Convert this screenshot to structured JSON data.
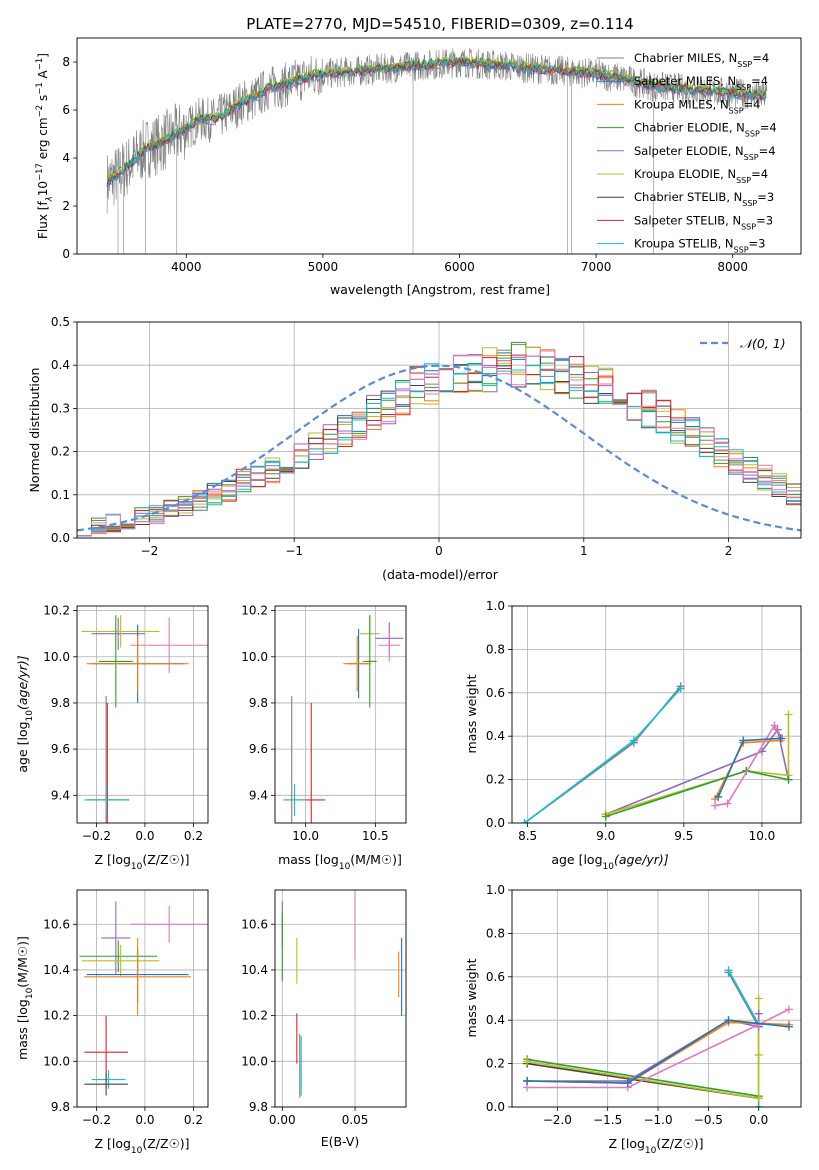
{
  "figure_title": "PLATE=2770, MJD=54510, FIBERID=0309, z=0.114",
  "colors": {
    "Chabrier MILES": "#7f7f7f",
    "Salpeter MILES": "#1f77b4",
    "Kroupa MILES": "#ff7f0e",
    "Chabrier ELODIE": "#2ca02c",
    "Salpeter ELODIE": "#9467bd",
    "Kroupa ELODIE": "#bcbd22",
    "Chabrier STELIB": "#444444",
    "Salpeter STELIB": "#d62728",
    "Kroupa STELIB": "#17becf",
    "Extra": "#e377c2",
    "normal": "#5b8bd8"
  },
  "chart_data": [
    {
      "id": "spectrum",
      "type": "line",
      "title": "PLATE=2770, MJD=54510, FIBERID=0309, z=0.114",
      "xlabel": "wavelength [Angstrom, rest frame]",
      "ylabel_parts": [
        "Flux [f",
        "λ",
        "10",
        "−17",
        " erg cm",
        "−2",
        " s",
        "−1",
        " A",
        "−1",
        "]"
      ],
      "xlim": [
        3200,
        8500
      ],
      "ylim": [
        0,
        9
      ],
      "xticks": [
        4000,
        5000,
        6000,
        7000,
        8000
      ],
      "yticks": [
        0,
        2,
        4,
        6,
        8
      ],
      "legend_position": "right",
      "legend": [
        {
          "name": "Chabrier MILES, N",
          "sub": "SSP",
          "suffix": "=4",
          "color": "#7f7f7f"
        },
        {
          "name": "Salpeter MILES, N",
          "sub": "SSP",
          "suffix": "=4",
          "color": "#1f77b4"
        },
        {
          "name": "Kroupa MILES, N",
          "sub": "SSP",
          "suffix": "=4",
          "color": "#ff7f0e"
        },
        {
          "name": "Chabrier ELODIE, N",
          "sub": "SSP",
          "suffix": "=4",
          "color": "#2ca02c"
        },
        {
          "name": "Salpeter ELODIE, N",
          "sub": "SSP",
          "suffix": "=4",
          "color": "#9467bd"
        },
        {
          "name": "Kroupa ELODIE, N",
          "sub": "SSP",
          "suffix": "=4",
          "color": "#bcbd22"
        },
        {
          "name": "Chabrier STELIB, N",
          "sub": "SSP",
          "suffix": "=3",
          "color": "#444444"
        },
        {
          "name": "Salpeter STELIB, N",
          "sub": "SSP",
          "suffix": "=3",
          "color": "#d62728"
        },
        {
          "name": "Kroupa STELIB, N",
          "sub": "SSP",
          "suffix": "=3",
          "color": "#17becf"
        }
      ],
      "model_curve": {
        "x": [
          3420,
          3500,
          3600,
          3700,
          3800,
          3900,
          4000,
          4100,
          4200,
          4300,
          4400,
          4500,
          4600,
          4700,
          4800,
          4900,
          5000,
          5200,
          5400,
          5600,
          5800,
          6000,
          6200,
          6400,
          6600,
          6800,
          7000,
          7200,
          7400,
          7600,
          7800,
          8000,
          8200,
          8250
        ],
        "y": [
          3.0,
          3.3,
          3.8,
          4.4,
          4.6,
          4.9,
          5.2,
          5.6,
          5.6,
          5.9,
          6.3,
          6.5,
          6.9,
          7.0,
          7.2,
          7.4,
          7.5,
          7.6,
          7.7,
          7.8,
          7.9,
          8.0,
          7.9,
          7.8,
          7.7,
          7.6,
          7.5,
          7.3,
          7.0,
          6.9,
          6.8,
          6.7,
          6.6,
          6.6
        ]
      },
      "data_range": [
        3420,
        8250
      ],
      "spikes": [
        {
          "x": 3500,
          "y0": 0,
          "y1": 3.2
        },
        {
          "x": 3540,
          "y0": 0,
          "y1": 3.3
        },
        {
          "x": 3700,
          "y0": 0,
          "y1": 4.4
        },
        {
          "x": 3930,
          "y0": 0,
          "y1": 4.8
        },
        {
          "x": 5660,
          "y0": 0,
          "y1": 7.7
        },
        {
          "x": 6790,
          "y0": 0,
          "y1": 7.6
        },
        {
          "x": 6820,
          "y0": 0,
          "y1": 7.6
        },
        {
          "x": 7420,
          "y0": 0,
          "y1": 6.9
        }
      ]
    },
    {
      "id": "residuals",
      "type": "line",
      "xlabel": "(data-model)/error",
      "ylabel": "Normed distribution",
      "xlim": [
        -2.5,
        2.5
      ],
      "ylim": [
        0,
        0.5
      ],
      "xticks": [
        -2,
        -1,
        0,
        1,
        2
      ],
      "yticks": [
        0.0,
        0.1,
        0.2,
        0.3,
        0.4,
        0.5
      ],
      "grid": true,
      "legend_position": "top-right",
      "legend_label": "𝒩(0, 1)",
      "normal_curve": {
        "mu": 0,
        "sigma": 1
      },
      "bin_width": 0.1,
      "histogram_bin_centers_from": -2.5,
      "histogram_base": [
        0.025,
        0.03,
        0.035,
        0.04,
        0.05,
        0.055,
        0.065,
        0.075,
        0.09,
        0.1,
        0.11,
        0.13,
        0.14,
        0.16,
        0.17,
        0.19,
        0.21,
        0.23,
        0.25,
        0.27,
        0.29,
        0.31,
        0.33,
        0.35,
        0.36,
        0.37,
        0.38,
        0.39,
        0.39,
        0.4,
        0.4,
        0.39,
        0.39,
        0.38,
        0.37,
        0.36,
        0.35,
        0.33,
        0.31,
        0.3,
        0.28,
        0.26,
        0.24,
        0.22,
        0.2,
        0.18,
        0.16,
        0.14,
        0.12,
        0.1
      ]
    },
    {
      "id": "age-vs-Z",
      "type": "scatter",
      "xlabel": "Z [log",
      "ylabel": "age",
      "xlim": [
        -0.28,
        0.26
      ],
      "ylim": [
        9.28,
        10.22
      ],
      "xticks": [
        -0.2,
        0.0,
        0.2
      ],
      "yticks": [
        9.4,
        9.6,
        9.8,
        10.0,
        10.2
      ],
      "grid": true,
      "points": [
        {
          "x": -0.11,
          "y": 10.1,
          "xerr": 0.11,
          "yerr": 0.07,
          "color": "#9467bd"
        },
        {
          "x": -0.1,
          "y": 10.11,
          "xerr": 0.16,
          "yerr": 0.07,
          "color": "#bcbd22"
        },
        {
          "x": 0.1,
          "y": 10.05,
          "xerr": 0.16,
          "yerr": 0.12,
          "color": "#e377c2"
        },
        {
          "x": -0.12,
          "y": 9.98,
          "xerr": 0.07,
          "yerr": 0.2,
          "color": "#2ca02c"
        },
        {
          "x": -0.03,
          "y": 9.97,
          "xerr": 0.19,
          "yerr": 0.17,
          "color": "#1f77b4"
        },
        {
          "x": -0.03,
          "y": 9.97,
          "xerr": 0.21,
          "yerr": 0.12,
          "color": "#ff7f0e"
        },
        {
          "x": -0.16,
          "y": 9.38,
          "xerr": 0.07,
          "yerr": 0.45,
          "color": "#7f7f7f"
        },
        {
          "x": -0.155,
          "y": 9.38,
          "xerr": 0.09,
          "yerr": 0.42,
          "color": "#d62728"
        },
        {
          "x": -0.16,
          "y": 9.38,
          "xerr": 0.09,
          "yerr": 0.07,
          "color": "#17becf"
        }
      ]
    },
    {
      "id": "age-vs-mass",
      "type": "scatter",
      "xlabel": "mass [log",
      "xlim": [
        9.78,
        10.72
      ],
      "ylim": [
        9.28,
        10.22
      ],
      "xticks": [
        10.0,
        10.5
      ],
      "yticks": [
        9.4,
        9.6,
        9.8,
        10.0,
        10.2
      ],
      "grid": true,
      "points": [
        {
          "x": 10.6,
          "y": 10.08,
          "xerr": 0.1,
          "yerr": 0.07,
          "color": "#9467bd"
        },
        {
          "x": 10.46,
          "y": 10.1,
          "xerr": 0.07,
          "yerr": 0.08,
          "color": "#bcbd22"
        },
        {
          "x": 10.6,
          "y": 10.05,
          "xerr": 0.08,
          "yerr": 0.07,
          "color": "#e377c2"
        },
        {
          "x": 10.46,
          "y": 9.98,
          "xerr": 0.05,
          "yerr": 0.2,
          "color": "#2ca02c"
        },
        {
          "x": 10.38,
          "y": 9.97,
          "xerr": 0.08,
          "yerr": 0.15,
          "color": "#1f77b4"
        },
        {
          "x": 10.37,
          "y": 9.97,
          "xerr": 0.1,
          "yerr": 0.12,
          "color": "#ff7f0e"
        },
        {
          "x": 9.9,
          "y": 9.38,
          "xerr": 0.05,
          "yerr": 0.45,
          "color": "#7f7f7f"
        },
        {
          "x": 10.04,
          "y": 9.38,
          "xerr": 0.1,
          "yerr": 0.42,
          "color": "#d62728"
        },
        {
          "x": 9.92,
          "y": 9.38,
          "xerr": 0.08,
          "yerr": 0.07,
          "color": "#17becf"
        }
      ]
    },
    {
      "id": "massweight-vs-age",
      "type": "line",
      "xlabel": "age",
      "ylabel": "mass weight",
      "xlim": [
        8.4,
        10.25
      ],
      "ylim": [
        0,
        1
      ],
      "xticks": [
        8.5,
        9.0,
        9.5,
        10.0
      ],
      "yticks": [
        0.0,
        0.2,
        0.4,
        0.6,
        0.8,
        1.0
      ],
      "grid": true,
      "series": [
        {
          "color": "#7f7f7f",
          "x": [
            8.48,
            9.18,
            9.48
          ],
          "y": [
            0.0,
            0.37,
            0.63
          ]
        },
        {
          "color": "#17becf",
          "x": [
            8.48,
            9.18,
            9.48
          ],
          "y": [
            0.0,
            0.38,
            0.62
          ]
        },
        {
          "color": "#9467bd",
          "x": [
            9.0,
            10.0,
            10.1,
            10.17
          ],
          "y": [
            0.04,
            0.33,
            0.43,
            0.2
          ]
        },
        {
          "color": "#bcbd22",
          "x": [
            9.0,
            9.9,
            10.17,
            10.17
          ],
          "y": [
            0.04,
            0.24,
            0.22,
            0.5
          ]
        },
        {
          "color": "#2ca02c",
          "x": [
            9.0,
            9.9,
            10.17
          ],
          "y": [
            0.03,
            0.24,
            0.2
          ]
        },
        {
          "color": "#ff7f0e",
          "x": [
            9.7,
            9.88,
            10.12
          ],
          "y": [
            0.11,
            0.37,
            0.38
          ]
        },
        {
          "color": "#e377c2",
          "x": [
            9.7,
            9.78,
            10.08,
            10.13
          ],
          "y": [
            0.08,
            0.09,
            0.45,
            0.39
          ]
        },
        {
          "color": "#1f77b4",
          "x": [
            9.72,
            9.88,
            10.12
          ],
          "y": [
            0.12,
            0.38,
            0.39
          ]
        }
      ]
    },
    {
      "id": "mass-vs-Z",
      "type": "scatter",
      "xlabel": "Z [log",
      "ylabel": "mass",
      "xlim": [
        -0.28,
        0.26
      ],
      "ylim": [
        9.8,
        10.75
      ],
      "xticks": [
        -0.2,
        0.0,
        0.2
      ],
      "yticks": [
        9.8,
        10.0,
        10.2,
        10.4,
        10.6
      ],
      "grid": true,
      "points": [
        {
          "x": 0.1,
          "y": 10.6,
          "xerr": 0.16,
          "yerr": 0.08,
          "color": "#e377c2"
        },
        {
          "x": -0.12,
          "y": 10.54,
          "xerr": 0.06,
          "yerr": 0.16,
          "color": "#9467bd"
        },
        {
          "x": -0.11,
          "y": 10.46,
          "xerr": 0.16,
          "yerr": 0.07,
          "color": "#2ca02c"
        },
        {
          "x": -0.1,
          "y": 10.44,
          "xerr": 0.16,
          "yerr": 0.07,
          "color": "#bcbd22"
        },
        {
          "x": -0.03,
          "y": 10.38,
          "xerr": 0.21,
          "yerr": 0.12,
          "color": "#1f77b4"
        },
        {
          "x": -0.03,
          "y": 10.37,
          "xerr": 0.22,
          "yerr": 0.17,
          "color": "#ff7f0e"
        },
        {
          "x": -0.16,
          "y": 10.04,
          "xerr": 0.09,
          "yerr": 0.16,
          "color": "#d62728"
        },
        {
          "x": -0.15,
          "y": 9.92,
          "xerr": 0.07,
          "yerr": 0.04,
          "color": "#17becf"
        },
        {
          "x": -0.16,
          "y": 9.9,
          "xerr": 0.09,
          "yerr": 0.05,
          "color": "#444444"
        }
      ]
    },
    {
      "id": "mass-vs-ebv",
      "type": "scatter",
      "xlabel": "E(B-V)",
      "xlim": [
        -0.005,
        0.085
      ],
      "ylim": [
        9.8,
        10.75
      ],
      "xticks": [
        0.0,
        0.05
      ],
      "yticks": [
        9.8,
        10.0,
        10.2,
        10.4,
        10.6
      ],
      "grid": true,
      "points": [
        {
          "x": 0.0,
          "y": 10.6,
          "yerr": 0.1,
          "color": "#9467bd"
        },
        {
          "x": 0.0,
          "y": 10.5,
          "yerr": 0.15,
          "color": "#2ca02c"
        },
        {
          "x": 0.01,
          "y": 10.44,
          "yerr": 0.1,
          "color": "#bcbd22"
        },
        {
          "x": 0.05,
          "y": 10.6,
          "yerr": 0.16,
          "color": "#e377c2"
        },
        {
          "x": 0.08,
          "y": 10.38,
          "yerr": 0.1,
          "color": "#ff7f0e"
        },
        {
          "x": 0.082,
          "y": 10.37,
          "yerr": 0.17,
          "color": "#1f77b4"
        },
        {
          "x": 0.01,
          "y": 10.1,
          "yerr": 0.11,
          "color": "#d62728"
        },
        {
          "x": 0.012,
          "y": 9.98,
          "yerr": 0.14,
          "color": "#7f7f7f"
        },
        {
          "x": 0.013,
          "y": 9.98,
          "yerr": 0.13,
          "color": "#17becf"
        }
      ]
    },
    {
      "id": "massweight-vs-Z",
      "type": "line",
      "xlabel": "Z [log",
      "ylabel": "mass weight",
      "xlim": [
        -2.45,
        0.42
      ],
      "ylim": [
        0,
        1
      ],
      "xticks": [
        -2.0,
        -1.5,
        -1.0,
        -0.5,
        0.0
      ],
      "yticks": [
        0.0,
        0.2,
        0.4,
        0.6,
        0.8,
        1.0
      ],
      "grid": true,
      "series": [
        {
          "color": "#7f7f7f",
          "x": [
            -0.3,
            0.0,
            0.0
          ],
          "y": [
            0.62,
            0.37,
            0.0
          ]
        },
        {
          "color": "#17becf",
          "x": [
            -0.3,
            0.0,
            0.0
          ],
          "y": [
            0.63,
            0.38,
            0.0
          ]
        },
        {
          "color": "#444444",
          "x": [
            -2.3,
            0.0
          ],
          "y": [
            0.2,
            0.04
          ]
        },
        {
          "color": "#2ca02c",
          "x": [
            -2.3,
            0.0
          ],
          "y": [
            0.22,
            0.05
          ]
        },
        {
          "color": "#bcbd22",
          "x": [
            -2.3,
            0.0,
            0.0,
            0.0
          ],
          "y": [
            0.21,
            0.04,
            0.24,
            0.5
          ]
        },
        {
          "color": "#9467bd",
          "x": [
            -2.3,
            -1.3,
            -0.3,
            0.0,
            0.0
          ],
          "y": [
            0.12,
            0.12,
            0.4,
            0.37,
            0.43
          ]
        },
        {
          "color": "#ff7f0e",
          "x": [
            -2.3,
            -1.3,
            -0.3,
            0.3
          ],
          "y": [
            0.12,
            0.11,
            0.39,
            0.38
          ]
        },
        {
          "color": "#e377c2",
          "x": [
            -2.3,
            -1.3,
            0.0,
            0.3
          ],
          "y": [
            0.09,
            0.09,
            0.38,
            0.45
          ]
        },
        {
          "color": "#1f77b4",
          "x": [
            -2.3,
            -1.3,
            -0.3,
            0.3
          ],
          "y": [
            0.12,
            0.11,
            0.4,
            0.37
          ]
        }
      ]
    }
  ]
}
